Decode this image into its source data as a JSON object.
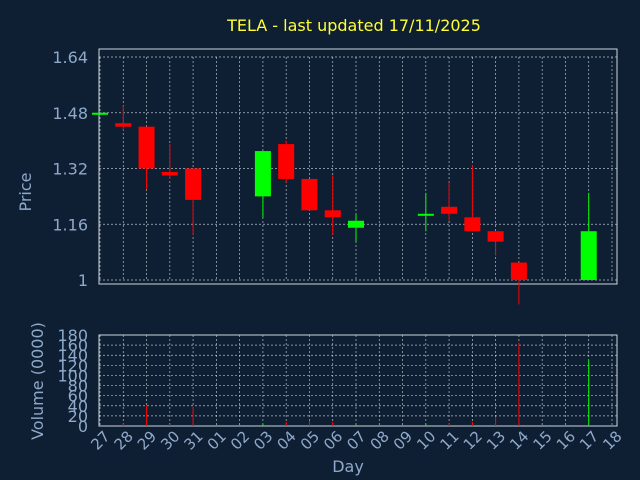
{
  "chart_data": {
    "type": "candlestick",
    "title": "TELA - last updated 17/11/2025",
    "xlabel": "Day",
    "ylabel": "Price",
    "volume_label": "Volume (0000)",
    "grid": true,
    "colors": {
      "background": "#0f1f33",
      "up": "#00ff00",
      "down": "#ff0000",
      "title": "#ffff33",
      "labels": "#8ea9c9",
      "grid": "#cfd6df"
    },
    "categories": [
      "27",
      "28",
      "29",
      "30",
      "31",
      "01",
      "02",
      "03",
      "04",
      "05",
      "06",
      "07",
      "08",
      "09",
      "10",
      "11",
      "12",
      "13",
      "14",
      "15",
      "16",
      "17",
      "18"
    ],
    "price_ticks": [
      "1",
      "1.16",
      "1.32",
      "1.48",
      "1.64"
    ],
    "price_ylim": [
      1.0,
      1.64
    ],
    "volume_ticks": [
      "0",
      "20",
      "40",
      "60",
      "80",
      "100",
      "120",
      "140",
      "160",
      "180"
    ],
    "volume_ylim": [
      0,
      180
    ],
    "candles": [
      {
        "day": "27",
        "open": 1.48,
        "high": 1.48,
        "low": 1.48,
        "close": 1.48,
        "volume": 0
      },
      {
        "day": "28",
        "open": 1.45,
        "high": 1.5,
        "low": 1.43,
        "close": 1.44,
        "volume": 5
      },
      {
        "day": "29",
        "open": 1.44,
        "high": 1.44,
        "low": 1.26,
        "close": 1.32,
        "volume": 40
      },
      {
        "day": "30",
        "open": 1.31,
        "high": 1.39,
        "low": 1.29,
        "close": 1.3,
        "volume": 3
      },
      {
        "day": "31",
        "open": 1.32,
        "high": 1.32,
        "low": 1.13,
        "close": 1.23,
        "volume": 38
      },
      {
        "day": "03",
        "open": 1.24,
        "high": 1.37,
        "low": 1.18,
        "close": 1.37,
        "volume": 4
      },
      {
        "day": "04",
        "open": 1.39,
        "high": 1.4,
        "low": 1.28,
        "close": 1.29,
        "volume": 8
      },
      {
        "day": "05",
        "open": 1.29,
        "high": 1.29,
        "low": 1.2,
        "close": 1.2,
        "volume": 10
      },
      {
        "day": "06",
        "open": 1.2,
        "high": 1.3,
        "low": 1.13,
        "close": 1.18,
        "volume": 8
      },
      {
        "day": "07",
        "open": 1.15,
        "high": 1.19,
        "low": 1.11,
        "close": 1.17,
        "volume": 3
      },
      {
        "day": "10",
        "open": 1.19,
        "high": 1.25,
        "low": 1.14,
        "close": 1.19,
        "volume": 5
      },
      {
        "day": "11",
        "open": 1.21,
        "high": 1.28,
        "low": 1.17,
        "close": 1.19,
        "volume": 5
      },
      {
        "day": "12",
        "open": 1.18,
        "high": 1.33,
        "low": 1.14,
        "close": 1.14,
        "volume": 8
      },
      {
        "day": "13",
        "open": 1.14,
        "high": 1.14,
        "low": 1.07,
        "close": 1.11,
        "volume": 18
      },
      {
        "day": "14",
        "open": 1.05,
        "high": 1.05,
        "low": 0.93,
        "close": 1.0,
        "volume": 165
      },
      {
        "day": "17",
        "open": 1.0,
        "high": 1.25,
        "low": 1.0,
        "close": 1.14,
        "volume": 130
      }
    ]
  }
}
